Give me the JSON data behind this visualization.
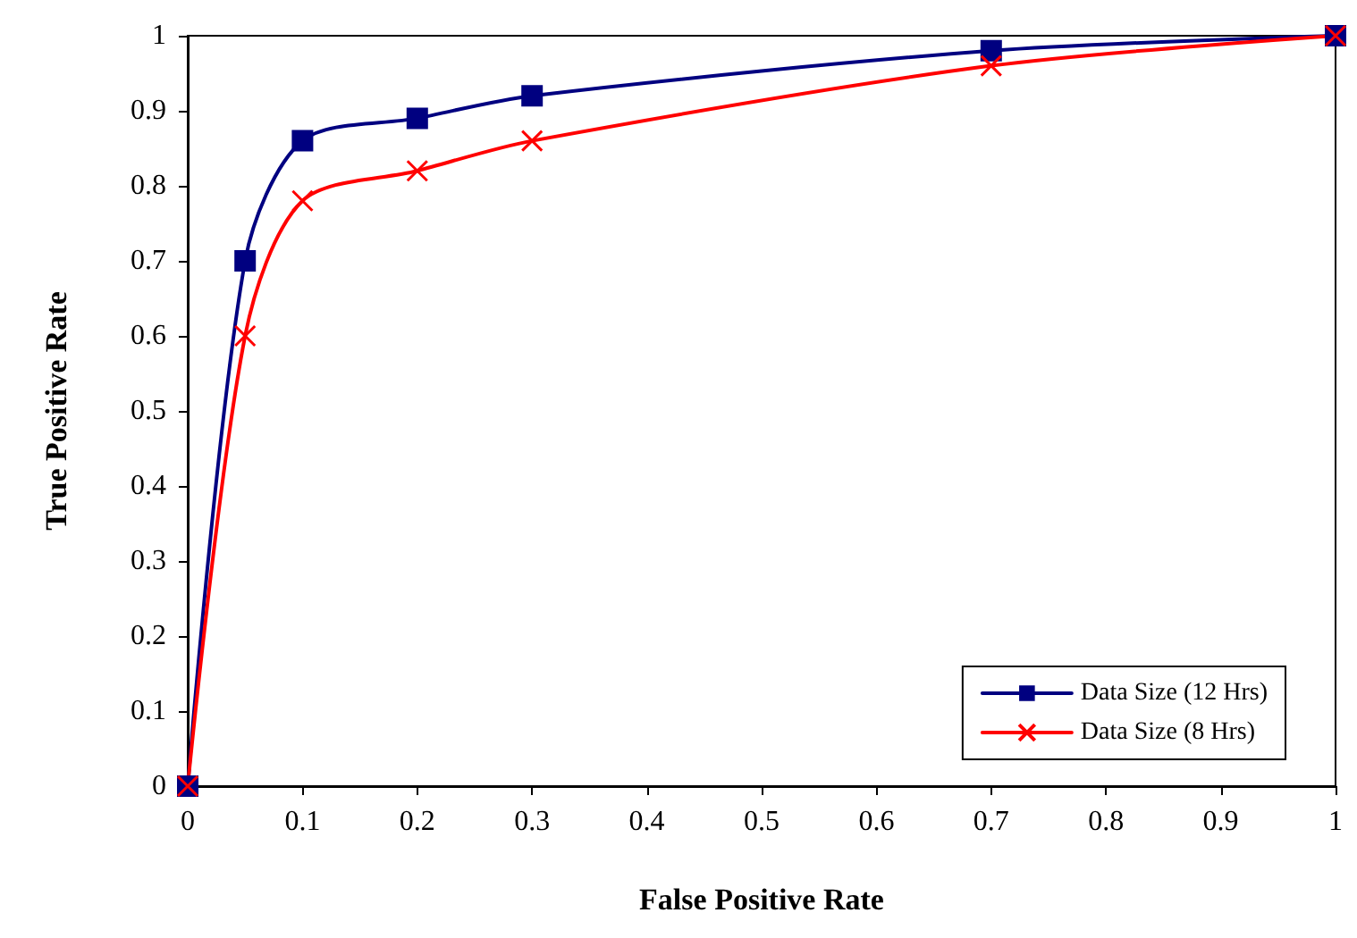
{
  "chart_data": {
    "type": "line",
    "xlabel": "False Positive Rate",
    "ylabel": "True Positive Rate",
    "xlim": [
      0,
      1
    ],
    "ylim": [
      0,
      1
    ],
    "xticks": [
      0,
      0.1,
      0.2,
      0.3,
      0.4,
      0.5,
      0.6,
      0.7,
      0.8,
      0.9,
      1
    ],
    "yticks": [
      0,
      0.1,
      0.2,
      0.3,
      0.4,
      0.5,
      0.6,
      0.7,
      0.8,
      0.9,
      1
    ],
    "grid": false,
    "legend": "bottom right",
    "line_style": "solid",
    "series": [
      {
        "name": "Data Size (12 Hrs)",
        "color": "#000080",
        "marker": "square",
        "x": [
          0,
          0.05,
          0.1,
          0.2,
          0.3,
          0.7,
          1
        ],
        "values": [
          0,
          0.7,
          0.86,
          0.89,
          0.92,
          0.98,
          1
        ]
      },
      {
        "name": "Data Size (8 Hrs)",
        "color": "#ff0000",
        "marker": "cross",
        "x": [
          0,
          0.05,
          0.1,
          0.2,
          0.3,
          0.7,
          1
        ],
        "values": [
          0,
          0.6,
          0.78,
          0.82,
          0.86,
          0.96,
          1
        ]
      }
    ]
  }
}
